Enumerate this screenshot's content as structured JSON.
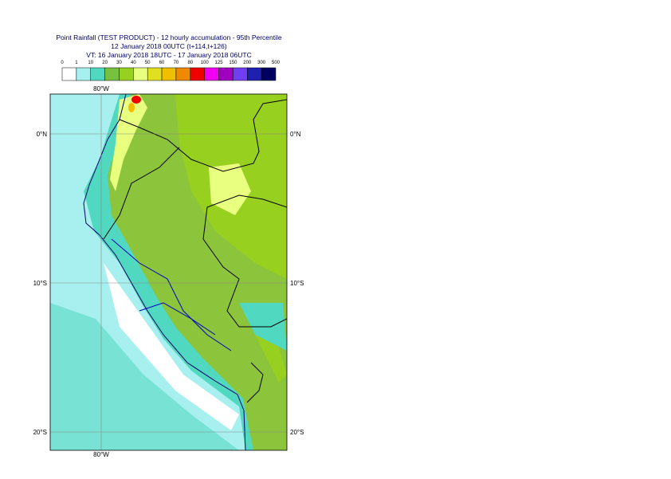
{
  "header": {
    "title_lines": [
      "Point Rainfall (TEST PRODUCT) - 12 hourly accumulation - 95th Percentile",
      "12 January 2018 00UTC (t+114,t+126)",
      "VT: 16 January 2018 18UTC - 17 January 2018 06UTC"
    ]
  },
  "colorbar": {
    "labels": [
      0,
      1,
      10,
      20,
      30,
      40,
      50,
      60,
      70,
      80,
      100,
      125,
      150,
      200,
      300,
      500
    ]
  },
  "map": {
    "longitude_labels": {
      "top": "80°W",
      "bottom": "80°W"
    },
    "latitude_labels": {
      "left": [
        "0°N",
        "10°S",
        "20°S"
      ],
      "right": [
        "0°N",
        "10°S",
        "20°S"
      ]
    }
  }
}
